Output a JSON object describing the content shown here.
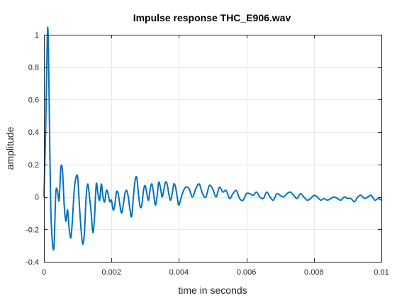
{
  "chart_data": {
    "type": "line",
    "title": "Impulse response THC_E906.wav",
    "xlabel": "time in seconds",
    "ylabel": "amplitude",
    "xlim": [
      0,
      0.01
    ],
    "ylim": [
      -0.4,
      1
    ],
    "grid": true,
    "xticks": [
      0,
      0.002,
      0.004,
      0.006,
      0.008,
      0.01
    ],
    "xtick_labels": [
      "0",
      "0.002",
      "0.004",
      "0.006",
      "0.008",
      "0.01"
    ],
    "yticks": [
      -0.4,
      -0.2,
      0,
      0.2,
      0.4,
      0.6,
      0.8,
      1
    ],
    "ytick_labels": [
      "-0.4",
      "-0.2",
      "0",
      "0.2",
      "0.4",
      "0.6",
      "0.8",
      "1"
    ],
    "series": [
      {
        "color": "#0072BD",
        "x": [
          0,
          5e-05,
          0.0001,
          0.00013,
          0.00016,
          0.0002,
          0.00025,
          0.0003,
          0.00035,
          0.0004,
          0.00045,
          0.0005,
          0.00055,
          0.0006,
          0.00065,
          0.0007,
          0.00075,
          0.0008,
          0.00085,
          0.0009,
          0.00095,
          0.001,
          0.00105,
          0.0011,
          0.00115,
          0.0012,
          0.00125,
          0.0013,
          0.00135,
          0.0014,
          0.00145,
          0.0015,
          0.00155,
          0.0016,
          0.00165,
          0.0017,
          0.00175,
          0.0018,
          0.00185,
          0.0019,
          0.00195,
          0.002,
          0.00205,
          0.0021,
          0.00215,
          0.0022,
          0.00225,
          0.0023,
          0.00235,
          0.0024,
          0.00245,
          0.0025,
          0.00255,
          0.0026,
          0.00265,
          0.0027,
          0.00275,
          0.0028,
          0.00285,
          0.0029,
          0.00295,
          0.003,
          0.00305,
          0.0031,
          0.00315,
          0.0032,
          0.00325,
          0.0033,
          0.00335,
          0.0034,
          0.00345,
          0.0035,
          0.00355,
          0.0036,
          0.00365,
          0.0037,
          0.00375,
          0.0038,
          0.00385,
          0.0039,
          0.00395,
          0.004,
          0.0041,
          0.0042,
          0.0043,
          0.0044,
          0.0045,
          0.0046,
          0.0047,
          0.0048,
          0.0049,
          0.005,
          0.0051,
          0.0052,
          0.0053,
          0.0054,
          0.0055,
          0.0056,
          0.0057,
          0.0058,
          0.0059,
          0.006,
          0.0061,
          0.0062,
          0.0063,
          0.0064,
          0.0065,
          0.0066,
          0.0067,
          0.0068,
          0.0069,
          0.007,
          0.0071,
          0.0072,
          0.0073,
          0.0074,
          0.0075,
          0.0076,
          0.0077,
          0.0078,
          0.0079,
          0.008,
          0.0081,
          0.0082,
          0.0083,
          0.0084,
          0.0085,
          0.0086,
          0.0087,
          0.0088,
          0.0089,
          0.009,
          0.0091,
          0.0092,
          0.0093,
          0.0094,
          0.0095,
          0.0096,
          0.0097,
          0.0098,
          0.0099,
          0.01
        ],
        "y": [
          0,
          0.4,
          1.0,
          0.95,
          0.5,
          -0.05,
          -0.28,
          -0.3,
          0.02,
          0.04,
          -0.02,
          0.18,
          0.16,
          -0.05,
          -0.15,
          -0.08,
          -0.2,
          -0.25,
          -0.12,
          0.05,
          0.12,
          0.12,
          -0.05,
          -0.2,
          -0.29,
          -0.22,
          0.0,
          0.08,
          0.0,
          -0.1,
          -0.22,
          -0.12,
          0.08,
          0.02,
          -0.02,
          0.08,
          0.0,
          -0.03,
          0.04,
          0.02,
          -0.03,
          -0.02,
          -0.08,
          -0.05,
          0.03,
          0.02,
          -0.05,
          -0.1,
          -0.05,
          0.02,
          0.04,
          0.0,
          -0.08,
          -0.12,
          0.0,
          0.1,
          0.12,
          0.02,
          -0.06,
          -0.05,
          0.04,
          0.07,
          0.02,
          -0.02,
          0.05,
          0.08,
          0.02,
          -0.05,
          0.0,
          0.09,
          0.06,
          0.0,
          0.04,
          0.09,
          0.08,
          0.02,
          -0.02,
          0.02,
          0.08,
          0.06,
          0.0,
          -0.05,
          0.02,
          0.06,
          0.05,
          0.0,
          0.05,
          0.08,
          0.02,
          0.0,
          0.07,
          0.05,
          0.0,
          0.06,
          0.03,
          0.04,
          -0.01,
          0.02,
          0.04,
          -0.01,
          -0.02,
          0.02,
          0.02,
          0.01,
          0.03,
          0.0,
          -0.01,
          0.03,
          0.0,
          -0.02,
          0.02,
          0.01,
          0.0,
          0.02,
          0.03,
          0.01,
          -0.01,
          0.02,
          0.0,
          -0.02,
          -0.01,
          0.01,
          0.0,
          -0.02,
          -0.01,
          -0.02,
          -0.01,
          0.0,
          -0.01,
          -0.02,
          0.0,
          -0.01,
          -0.01,
          -0.03,
          0.0,
          0.01,
          -0.01,
          0.0,
          0.01,
          -0.02,
          -0.01,
          -0.02
        ]
      }
    ]
  }
}
